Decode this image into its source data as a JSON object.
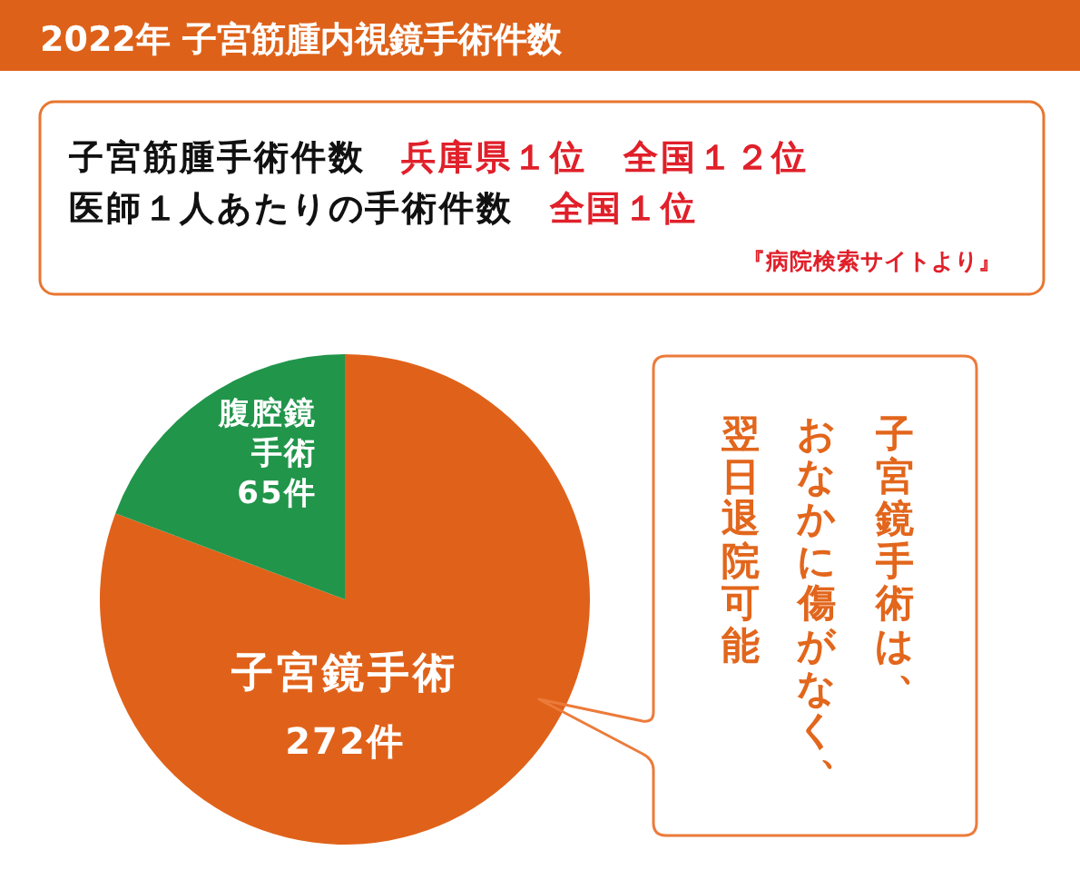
{
  "chart_data": {
    "type": "pie",
    "title": "2022年 子宮筋腫内視鏡手術件数",
    "categories": [
      "子宮鏡手術",
      "腹腔鏡手術"
    ],
    "values": [
      272,
      65
    ],
    "value_labels": [
      "272件",
      "65件"
    ],
    "colors": [
      "#e0621a",
      "#21954a"
    ],
    "annotations": [
      "子宮筋腫手術件数",
      "兵庫県１位　全国１２位",
      "医師１人あたりの手術件数",
      "全国１位",
      "『病院検索サイトより』",
      "子宮鏡手術は、",
      "おなかに傷がなく、",
      "翌日退院可能"
    ]
  }
}
